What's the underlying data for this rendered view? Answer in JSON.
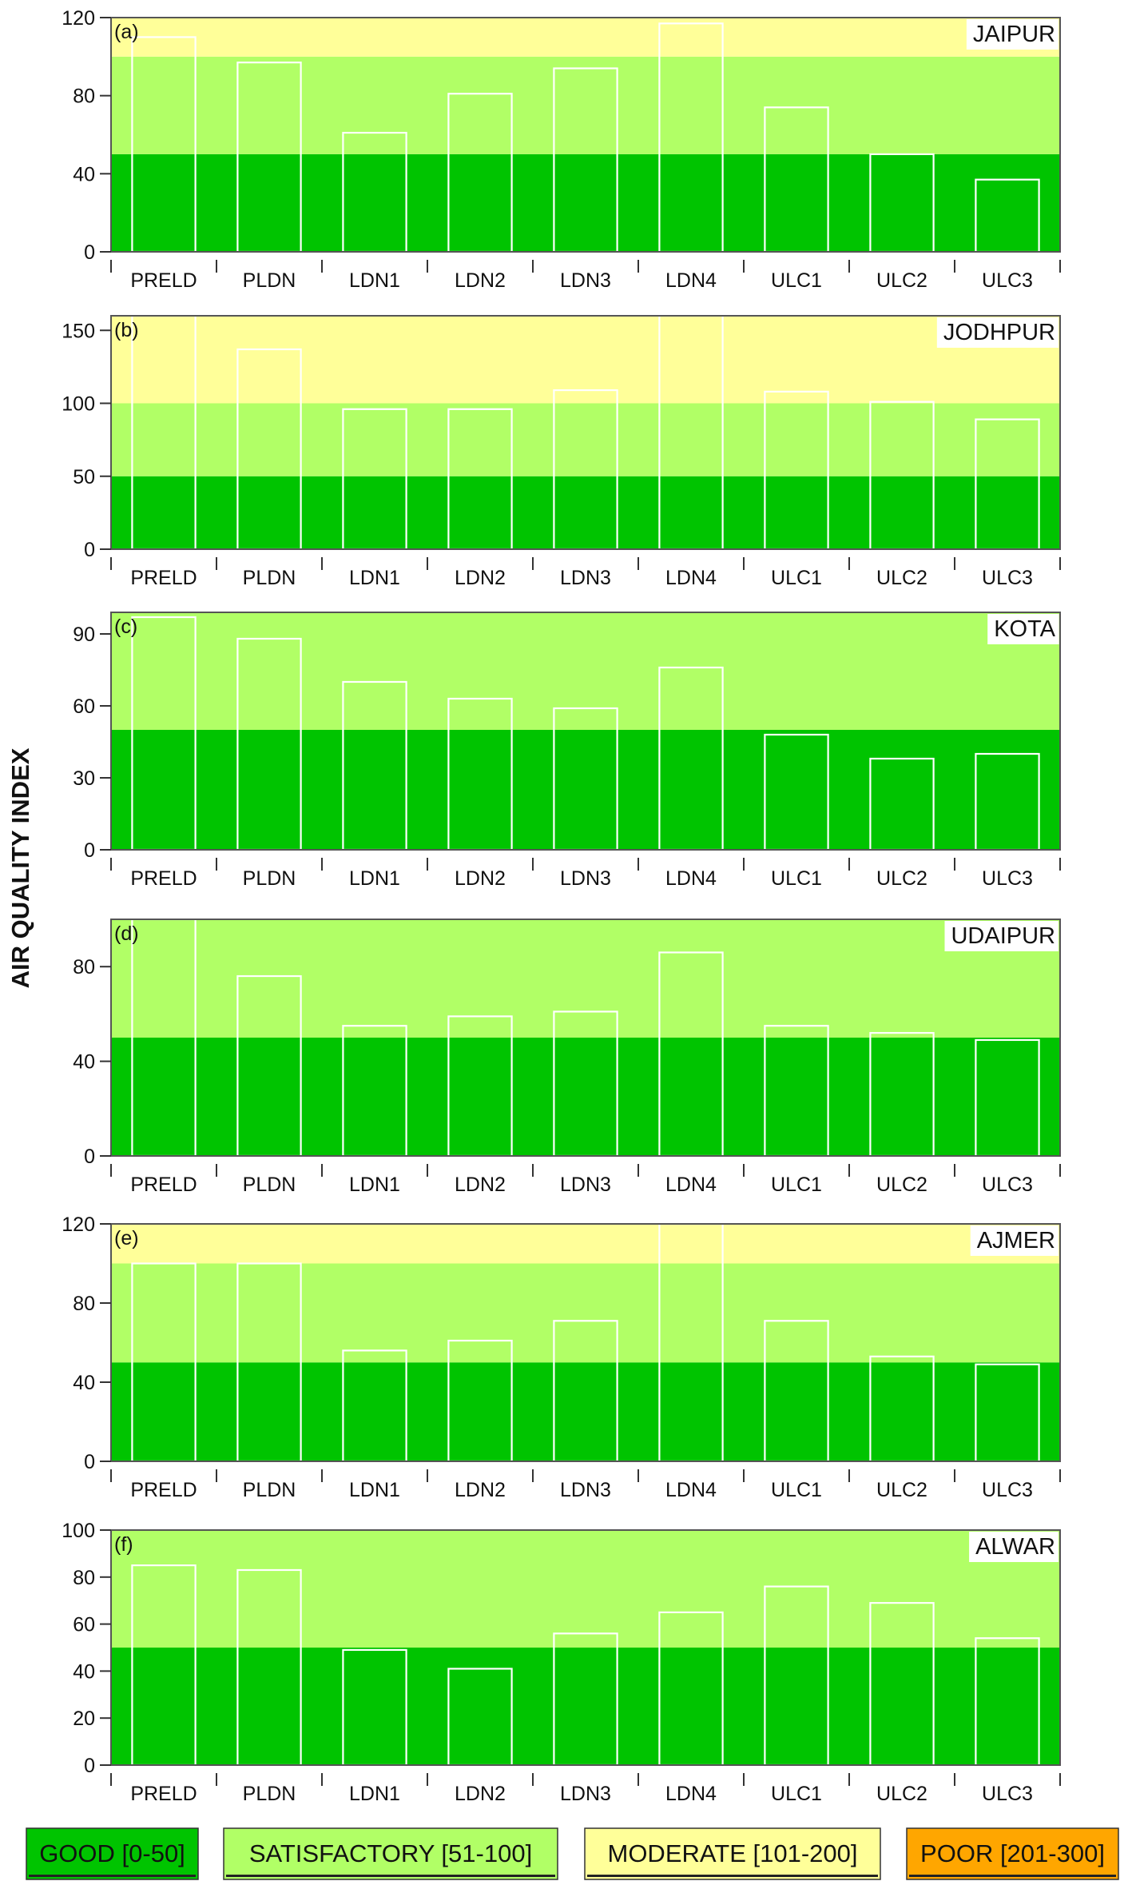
{
  "chart_data": {
    "type": "bar",
    "ylabel": "AIR QUALITY INDEX",
    "categories": [
      "PRELD",
      "PLDN",
      "LDN1",
      "LDN2",
      "LDN3",
      "LDN4",
      "ULC1",
      "ULC2",
      "ULC3"
    ],
    "bands": [
      {
        "label": "GOOD [0-50]",
        "min": 0,
        "max": 50,
        "color": "#00c400"
      },
      {
        "label": "SATISFACTORY [51-100]",
        "min": 51,
        "max": 100,
        "color": "#b1ff66"
      },
      {
        "label": "MODERATE [101-200]",
        "min": 101,
        "max": 200,
        "color": "#ffff99"
      },
      {
        "label": "POOR [201-300]",
        "min": 201,
        "max": 300,
        "color": "#ffa600"
      }
    ],
    "bar_outline_color": "#ffffff",
    "panels": [
      {
        "tag": "(a)",
        "city": "JAIPUR",
        "ylim": [
          0,
          120
        ],
        "yticks": [
          0,
          40,
          80,
          120
        ],
        "values": [
          110,
          97,
          61,
          81,
          94,
          117,
          74,
          50,
          37
        ]
      },
      {
        "tag": "(b)",
        "city": "JODHPUR",
        "ylim": [
          0,
          160
        ],
        "yticks": [
          0,
          50,
          100,
          150
        ],
        "values": [
          160,
          137,
          96,
          96,
          109,
          160,
          108,
          101,
          89
        ]
      },
      {
        "tag": "(c)",
        "city": "KOTA",
        "ylim": [
          0,
          99
        ],
        "yticks": [
          0,
          30,
          60,
          90
        ],
        "values": [
          97,
          88,
          70,
          63,
          59,
          76,
          48,
          38,
          40
        ]
      },
      {
        "tag": "(d)",
        "city": "UDAIPUR",
        "ylim": [
          0,
          100
        ],
        "yticks": [
          0,
          40,
          80
        ],
        "values": [
          100,
          76,
          55,
          59,
          61,
          86,
          55,
          52,
          49
        ]
      },
      {
        "tag": "(e)",
        "city": "AJMER",
        "ylim": [
          0,
          120
        ],
        "yticks": [
          0,
          40,
          80,
          120
        ],
        "values": [
          100,
          100,
          56,
          61,
          71,
          120,
          71,
          53,
          49
        ]
      },
      {
        "tag": "(f)",
        "city": "ALWAR",
        "ylim": [
          0,
          100
        ],
        "yticks": [
          0,
          20,
          40,
          60,
          80,
          100
        ],
        "values": [
          85,
          83,
          49,
          41,
          56,
          65,
          76,
          69,
          54
        ]
      }
    ]
  }
}
